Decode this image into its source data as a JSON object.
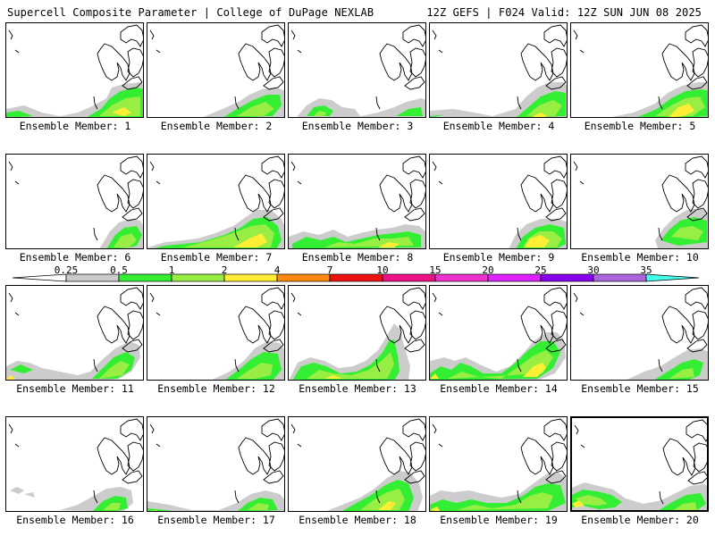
{
  "header": {
    "title": "Supercell Composite Parameter | College of DuPage NEXLAB",
    "valid": "12Z GEFS | F024 Valid: 12Z SUN JUN 08 2025"
  },
  "legend": {
    "ticks": [
      "0.25",
      "0.5",
      "1",
      "2",
      "4",
      "7",
      "10",
      "15",
      "20",
      "25",
      "30",
      "35"
    ],
    "colors": [
      "#cccccc",
      "#33ee33",
      "#99ee44",
      "#ffee33",
      "#ff8811",
      "#ee1111",
      "#ee1188",
      "#ee33cc",
      "#dd22ff",
      "#8800ee",
      "#aa66dd",
      "#44ffee"
    ]
  },
  "panel_label_prefix": "Ensemble Member:",
  "members": [
    {
      "n": "1"
    },
    {
      "n": "2"
    },
    {
      "n": "3"
    },
    {
      "n": "4"
    },
    {
      "n": "5"
    },
    {
      "n": "6"
    },
    {
      "n": "7"
    },
    {
      "n": "8"
    },
    {
      "n": "9"
    },
    {
      "n": "10"
    },
    {
      "n": "11"
    },
    {
      "n": "12"
    },
    {
      "n": "13"
    },
    {
      "n": "14"
    },
    {
      "n": "15"
    },
    {
      "n": "16"
    },
    {
      "n": "17"
    },
    {
      "n": "18"
    },
    {
      "n": "19"
    },
    {
      "n": "20"
    }
  ],
  "selected_member": "20"
}
